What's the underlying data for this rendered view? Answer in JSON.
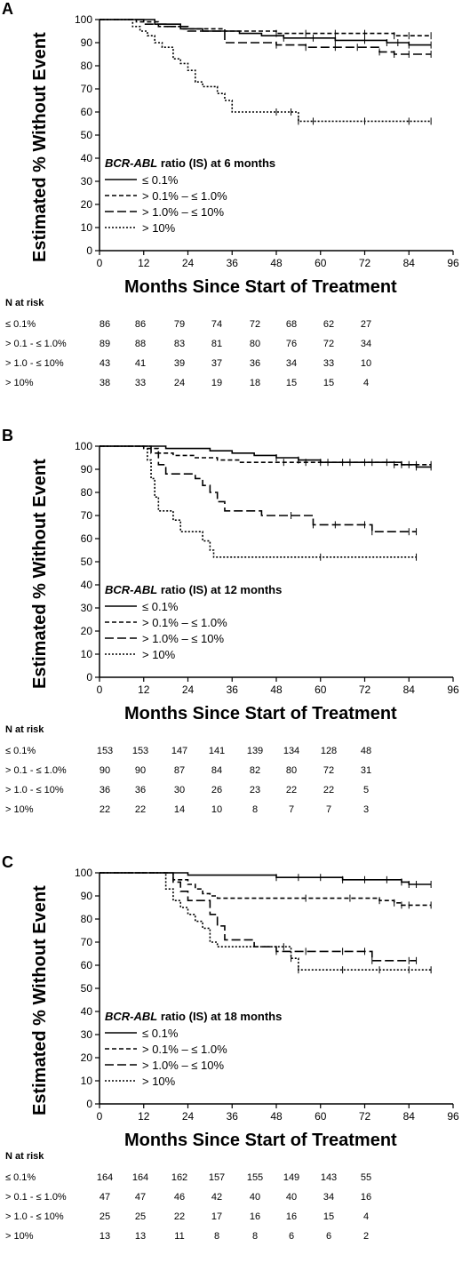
{
  "chart_data": [
    {
      "type": "line",
      "panel_label": "A",
      "ylabel": "Estimated % Without Event",
      "xlabel": "Months Since Start of Treatment",
      "xlim": [
        0,
        96
      ],
      "ylim": [
        0,
        100
      ],
      "xticks": [
        "0",
        "12",
        "24",
        "36",
        "48",
        "60",
        "72",
        "84",
        "96"
      ],
      "yticks": [
        "0",
        "10",
        "20",
        "30",
        "40",
        "50",
        "60",
        "70",
        "80",
        "90",
        "100"
      ],
      "legend_title_prefix": "BCR-ABL",
      "legend_title_suffix": " ratio (IS) at 6 months",
      "series": [
        {
          "name": "≤ 0.1%",
          "dash": "solid",
          "x": [
            0,
            8,
            15,
            22,
            28,
            33,
            38,
            44,
            50,
            58,
            64,
            72,
            78,
            81,
            84,
            90
          ],
          "y": [
            100,
            100,
            98,
            96,
            95,
            95,
            94,
            93,
            92,
            92,
            91,
            91,
            90,
            90,
            89,
            89
          ]
        },
        {
          "name": "> 0.1% – ≤ 1.0%",
          "dash": "dash",
          "x": [
            0,
            10,
            16,
            22,
            28,
            34,
            40,
            48,
            56,
            64,
            72,
            80,
            84,
            90
          ],
          "y": [
            100,
            99,
            97,
            96,
            96,
            95,
            95,
            94,
            94,
            94,
            94,
            93,
            93,
            93
          ]
        },
        {
          "name": "> 1.0% – ≤ 10%",
          "dash": "longdash",
          "x": [
            0,
            12,
            18,
            24,
            30,
            34,
            40,
            48,
            56,
            64,
            70,
            76,
            80,
            84,
            90
          ],
          "y": [
            100,
            98,
            97,
            95,
            95,
            90,
            90,
            89,
            88,
            88,
            88,
            86,
            85,
            85,
            85
          ]
        },
        {
          "name": "> 10%",
          "dash": "dot",
          "x": [
            0,
            9,
            11,
            13,
            15,
            17,
            20,
            22,
            24,
            26,
            28,
            32,
            34,
            36,
            42,
            48,
            52,
            54,
            58,
            72,
            84,
            90
          ],
          "y": [
            100,
            97,
            95,
            93,
            90,
            88,
            83,
            81,
            78,
            73,
            71,
            68,
            65,
            60,
            60,
            60,
            60,
            56,
            56,
            56,
            56,
            56
          ]
        }
      ],
      "risk_header": "N at risk",
      "risk_rows": [
        {
          "name": "≤ 0.1%",
          "values": [
            "86",
            "86",
            "79",
            "74",
            "72",
            "68",
            "62",
            "27"
          ]
        },
        {
          "name": "> 0.1 - ≤ 1.0%",
          "values": [
            "89",
            "88",
            "83",
            "81",
            "80",
            "76",
            "72",
            "34"
          ]
        },
        {
          "name": "> 1.0 - ≤ 10%",
          "values": [
            "43",
            "41",
            "39",
            "37",
            "36",
            "34",
            "33",
            "10"
          ]
        },
        {
          "name": "> 10%",
          "values": [
            "38",
            "33",
            "24",
            "19",
            "18",
            "15",
            "15",
            "4"
          ]
        }
      ]
    },
    {
      "type": "line",
      "panel_label": "B",
      "ylabel": "Estimated % Without Event",
      "xlabel": "Months Since Start of Treatment",
      "xlim": [
        0,
        96
      ],
      "ylim": [
        0,
        100
      ],
      "xticks": [
        "0",
        "12",
        "24",
        "36",
        "48",
        "60",
        "72",
        "84",
        "96"
      ],
      "yticks": [
        "0",
        "10",
        "20",
        "30",
        "40",
        "50",
        "60",
        "70",
        "80",
        "90",
        "100"
      ],
      "legend_title_prefix": "BCR-ABL",
      "legend_title_suffix": " ratio (IS) at 12 months",
      "series": [
        {
          "name": "≤ 0.1%",
          "dash": "solid",
          "x": [
            0,
            12,
            18,
            24,
            30,
            36,
            42,
            48,
            54,
            60,
            66,
            72,
            78,
            82,
            84,
            86,
            90
          ],
          "y": [
            100,
            100,
            99,
            99,
            98,
            97,
            96,
            95,
            94,
            93,
            93,
            93,
            93,
            92,
            92,
            91,
            91
          ]
        },
        {
          "name": "> 0.1% – ≤ 1.0%",
          "dash": "dash",
          "x": [
            0,
            12,
            16,
            20,
            26,
            32,
            38,
            44,
            50,
            56,
            62,
            68,
            74,
            80,
            86,
            90
          ],
          "y": [
            100,
            99,
            97,
            96,
            95,
            94,
            93,
            93,
            93,
            93,
            93,
            93,
            93,
            92,
            92,
            92
          ]
        },
        {
          "name": "> 1.0% – ≤ 10%",
          "dash": "longdash",
          "x": [
            0,
            12,
            14,
            16,
            18,
            24,
            26,
            28,
            30,
            32,
            34,
            40,
            44,
            52,
            58,
            64,
            72,
            74,
            84,
            86
          ],
          "y": [
            100,
            100,
            97,
            92,
            88,
            88,
            86,
            83,
            80,
            76,
            72,
            72,
            70,
            70,
            66,
            66,
            66,
            63,
            63,
            63
          ]
        },
        {
          "name": "> 10%",
          "dash": "dot",
          "x": [
            0,
            12,
            13,
            14,
            15,
            16,
            20,
            22,
            24,
            28,
            30,
            31,
            40,
            60,
            86
          ],
          "y": [
            100,
            100,
            94,
            86,
            78,
            72,
            68,
            63,
            63,
            59,
            55,
            52,
            52,
            52,
            52
          ]
        }
      ],
      "risk_header": "N at risk",
      "risk_rows": [
        {
          "name": "≤ 0.1%",
          "values": [
            "153",
            "153",
            "147",
            "141",
            "139",
            "134",
            "128",
            "48"
          ]
        },
        {
          "name": "> 0.1 - ≤ 1.0%",
          "values": [
            "90",
            "90",
            "87",
            "84",
            "82",
            "80",
            "72",
            "31"
          ]
        },
        {
          "name": "> 1.0 - ≤ 10%",
          "values": [
            "36",
            "36",
            "30",
            "26",
            "23",
            "22",
            "22",
            "5"
          ]
        },
        {
          "name": "> 10%",
          "values": [
            "22",
            "22",
            "14",
            "10",
            "8",
            "7",
            "7",
            "3"
          ]
        }
      ]
    },
    {
      "type": "line",
      "panel_label": "C",
      "ylabel": "Estimated % Without Event",
      "xlabel": "Months Since Start of Treatment",
      "xlim": [
        0,
        96
      ],
      "ylim": [
        0,
        100
      ],
      "xticks": [
        "0",
        "12",
        "24",
        "36",
        "48",
        "60",
        "72",
        "84",
        "96"
      ],
      "yticks": [
        "0",
        "10",
        "20",
        "30",
        "40",
        "50",
        "60",
        "70",
        "80",
        "90",
        "100"
      ],
      "legend_title_prefix": "BCR-ABL",
      "legend_title_suffix": " ratio (IS) at 18 months",
      "series": [
        {
          "name": "≤ 0.1%",
          "dash": "solid",
          "x": [
            0,
            18,
            24,
            30,
            36,
            42,
            48,
            54,
            60,
            66,
            72,
            78,
            82,
            84,
            86,
            90
          ],
          "y": [
            100,
            100,
            99,
            99,
            99,
            99,
            98,
            98,
            98,
            97,
            97,
            97,
            96,
            95,
            95,
            95
          ]
        },
        {
          "name": "> 0.1% – ≤ 1.0%",
          "dash": "dash",
          "x": [
            0,
            18,
            20,
            24,
            26,
            28,
            30,
            32,
            34,
            44,
            56,
            68,
            76,
            80,
            82,
            84,
            90
          ],
          "y": [
            100,
            100,
            97,
            95,
            93,
            91,
            90,
            89,
            89,
            89,
            89,
            89,
            88,
            87,
            86,
            86,
            86
          ]
        },
        {
          "name": "> 1.0% – ≤ 10%",
          "dash": "longdash",
          "x": [
            0,
            18,
            20,
            22,
            24,
            28,
            30,
            32,
            34,
            36,
            42,
            48,
            56,
            66,
            72,
            74,
            84,
            86
          ],
          "y": [
            100,
            100,
            96,
            92,
            88,
            88,
            82,
            77,
            71,
            71,
            68,
            66,
            66,
            66,
            66,
            62,
            62,
            62
          ]
        },
        {
          "name": "> 10%",
          "dash": "dot",
          "x": [
            0,
            18,
            20,
            22,
            24,
            26,
            28,
            30,
            32,
            40,
            50,
            52,
            54,
            66,
            76,
            84,
            90
          ],
          "y": [
            100,
            93,
            88,
            85,
            82,
            79,
            76,
            70,
            68,
            68,
            68,
            63,
            58,
            58,
            58,
            58,
            58
          ]
        }
      ],
      "risk_header": "N at risk",
      "risk_rows": [
        {
          "name": "≤ 0.1%",
          "values": [
            "164",
            "164",
            "162",
            "157",
            "155",
            "149",
            "143",
            "55"
          ]
        },
        {
          "name": "> 0.1 - ≤ 1.0%",
          "values": [
            "47",
            "47",
            "46",
            "42",
            "40",
            "40",
            "34",
            "16"
          ]
        },
        {
          "name": "> 1.0 - ≤ 10%",
          "values": [
            "25",
            "25",
            "22",
            "17",
            "16",
            "16",
            "15",
            "4"
          ]
        },
        {
          "name": "> 10%",
          "values": [
            "13",
            "13",
            "11",
            "8",
            "8",
            "6",
            "6",
            "2"
          ]
        }
      ]
    }
  ]
}
